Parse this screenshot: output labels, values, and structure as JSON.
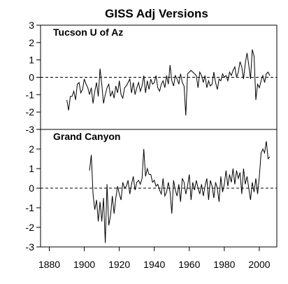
{
  "chart_data": [
    {
      "type": "line",
      "title": "GISS Adj Versions",
      "panel_label": "Tucson U of Az",
      "xlim": [
        1875,
        2010
      ],
      "ylim": [
        -3,
        3
      ],
      "yticks": [
        "-3",
        "-2",
        "-1",
        "0",
        "1",
        "2",
        "3"
      ],
      "reference_line": 0,
      "x": [
        1890,
        1891,
        1892,
        1893,
        1894,
        1895,
        1896,
        1897,
        1898,
        1899,
        1900,
        1901,
        1902,
        1903,
        1904,
        1905,
        1906,
        1907,
        1908,
        1909,
        1910,
        1911,
        1912,
        1913,
        1914,
        1915,
        1916,
        1917,
        1918,
        1919,
        1920,
        1921,
        1922,
        1923,
        1924,
        1925,
        1926,
        1927,
        1928,
        1929,
        1930,
        1931,
        1932,
        1933,
        1934,
        1935,
        1936,
        1937,
        1938,
        1939,
        1940,
        1941,
        1942,
        1943,
        1944,
        1945,
        1946,
        1947,
        1948,
        1949,
        1950,
        1951,
        1952,
        1953,
        1954,
        1955,
        1956,
        1957,
        1958,
        1959,
        1960,
        1961,
        1962,
        1963,
        1964,
        1965,
        1966,
        1967,
        1968,
        1969,
        1970,
        1971,
        1972,
        1973,
        1974,
        1975,
        1976,
        1977,
        1978,
        1979,
        1980,
        1981,
        1982,
        1983,
        1984,
        1985,
        1986,
        1987,
        1988,
        1989,
        1990,
        1991,
        1992,
        1993,
        1994,
        1995,
        1996,
        1997,
        1998,
        1999,
        2000,
        2001,
        2002,
        2003,
        2004,
        2005,
        2006
      ],
      "values": [
        -1.3,
        -1.9,
        -1.1,
        -1.1,
        -0.8,
        -1.3,
        -0.4,
        -0.3,
        -0.9,
        -0.7,
        -0.1,
        -0.4,
        -0.6,
        -1.0,
        -0.6,
        -1.5,
        -0.8,
        -0.3,
        -1.1,
        0.5,
        -0.4,
        -1.5,
        -1.0,
        -0.6,
        -0.4,
        -1.1,
        -0.8,
        -1.2,
        -0.5,
        -0.9,
        -0.2,
        -1.0,
        -1.2,
        -0.6,
        -0.5,
        -0.3,
        -0.1,
        -0.9,
        -0.3,
        -1.0,
        -0.6,
        -0.3,
        -0.8,
        -0.5,
        0.1,
        -0.9,
        -0.2,
        -0.7,
        -0.1,
        -0.4,
        -0.3,
        0.1,
        -0.6,
        -0.8,
        -0.4,
        -0.2,
        -0.6,
        0.1,
        -0.4,
        0.7,
        -0.2,
        -0.5,
        0.1,
        -0.1,
        -0.4,
        0.2,
        -0.3,
        -0.5,
        -2.2,
        0.2,
        0.3,
        0.4,
        0.3,
        0.2,
        0.1,
        -0.6,
        0.3,
        0.1,
        -0.3,
        0.1,
        -0.6,
        -0.2,
        -0.5,
        -0.4,
        0.3,
        -0.3,
        -0.7,
        -0.1,
        -0.2,
        0.2,
        0.0,
        0.1,
        -0.2,
        0.3,
        0.1,
        0.4,
        0.6,
        0.0,
        0.3,
        0.9,
        0.6,
        -0.1,
        0.8,
        1.4,
        0.7,
        -0.1,
        1.6,
        1.2,
        -1.3,
        -0.4,
        -0.6,
        -0.2,
        0.1,
        -0.3,
        0.2,
        0.3,
        0.1
      ]
    },
    {
      "type": "line",
      "panel_label": "Grand Canyon",
      "xlim": [
        1875,
        2010
      ],
      "ylim": [
        -3,
        3
      ],
      "yticks": [
        "-3",
        "-2",
        "-1",
        "0",
        "1",
        "2"
      ],
      "xticks": [
        1880,
        1900,
        1920,
        1940,
        1960,
        1980,
        2000
      ],
      "reference_line": 0,
      "x": [
        1903,
        1904,
        1905,
        1906,
        1907,
        1908,
        1909,
        1910,
        1911,
        1912,
        1913,
        1914,
        1915,
        1916,
        1917,
        1918,
        1919,
        1920,
        1921,
        1922,
        1923,
        1924,
        1925,
        1926,
        1927,
        1928,
        1929,
        1930,
        1931,
        1932,
        1933,
        1934,
        1935,
        1936,
        1937,
        1938,
        1939,
        1940,
        1941,
        1942,
        1943,
        1944,
        1945,
        1946,
        1947,
        1948,
        1949,
        1950,
        1951,
        1952,
        1953,
        1954,
        1955,
        1956,
        1957,
        1958,
        1959,
        1960,
        1961,
        1962,
        1963,
        1964,
        1965,
        1966,
        1967,
        1968,
        1969,
        1970,
        1971,
        1972,
        1973,
        1974,
        1975,
        1976,
        1977,
        1978,
        1979,
        1980,
        1981,
        1982,
        1983,
        1984,
        1985,
        1986,
        1987,
        1988,
        1989,
        1990,
        1991,
        1992,
        1993,
        1994,
        1995,
        1996,
        1997,
        1998,
        1999,
        2000,
        2001,
        2002,
        2003,
        2004,
        2005,
        2006
      ],
      "values": [
        0.9,
        1.7,
        -0.3,
        -1.1,
        -0.6,
        -1.7,
        -0.7,
        -1.7,
        -0.5,
        -2.8,
        0.2,
        -1.9,
        -1.4,
        -0.4,
        -1.3,
        -0.5,
        0.1,
        -0.3,
        -0.6,
        0.3,
        0.0,
        0.1,
        0.4,
        -0.3,
        0.2,
        0.6,
        -0.1,
        0.3,
        0.4,
        0.2,
        0.5,
        2.0,
        0.6,
        1.0,
        0.7,
        0.7,
        0.3,
        0.4,
        0.1,
        0.2,
        -0.1,
        -0.3,
        0.5,
        -0.4,
        -0.2,
        0.3,
        -0.2,
        -1.3,
        0.4,
        -0.1,
        -0.4,
        0.2,
        -0.7,
        0.5,
        0.3,
        -0.3,
        0.1,
        0.7,
        -0.6,
        0.3,
        -0.1,
        0.4,
        0.0,
        -0.3,
        0.2,
        -0.4,
        0.1,
        0.5,
        -0.6,
        0.4,
        0.1,
        -0.5,
        0.3,
        0.0,
        -0.7,
        0.6,
        -0.2,
        0.2,
        0.9,
        0.1,
        0.7,
        0.3,
        1.0,
        0.2,
        0.9,
        0.5,
        0.8,
        -0.3,
        1.0,
        0.2,
        0.6,
        0.0,
        -0.6,
        0.3,
        -0.2,
        0.5,
        -0.3,
        0.6,
        1.8,
        2.0,
        1.8,
        2.4,
        1.5,
        1.6
      ]
    }
  ]
}
